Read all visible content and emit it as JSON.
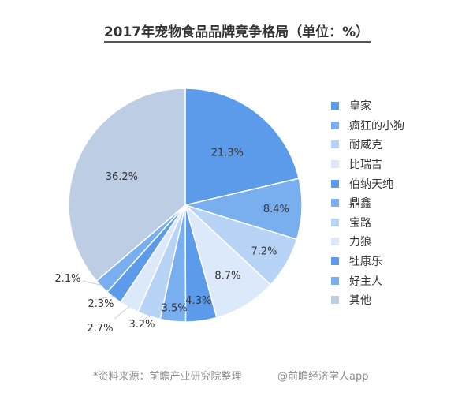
{
  "title": "2017年宠物食品品牌竞争格局（单位：%）",
  "chart_data": {
    "type": "pie",
    "title": "2017年宠物食品品牌竞争格局（单位：%）",
    "categories": [
      "皇家",
      "疯狂的小狗",
      "耐威克",
      "比瑞吉",
      "伯纳天纯",
      "鼎鑫",
      "宝路",
      "力狼",
      "牡康乐",
      "好主人",
      "其他"
    ],
    "values": [
      21.3,
      8.4,
      7.2,
      8.7,
      4.3,
      3.5,
      3.2,
      2.7,
      2.3,
      2.1,
      36.2
    ],
    "labels": [
      "21.3%",
      "8.4%",
      "7.2%",
      "8.7%",
      "4.3%",
      "3.5%",
      "3.2%",
      "2.7%",
      "2.3%",
      "2.1%",
      "36.2%"
    ],
    "colors": [
      "#5b9bea",
      "#79afef",
      "#b7d3f6",
      "#dce9fb",
      "#5b9bea",
      "#79afef",
      "#b7d3f6",
      "#dce9fb",
      "#5b9bea",
      "#79afef",
      "#bccde4"
    ],
    "legend_position": "right"
  },
  "footer": {
    "source": "*资料来源：前瞻产业研究院整理",
    "credit": "@前瞻经济学人app"
  }
}
